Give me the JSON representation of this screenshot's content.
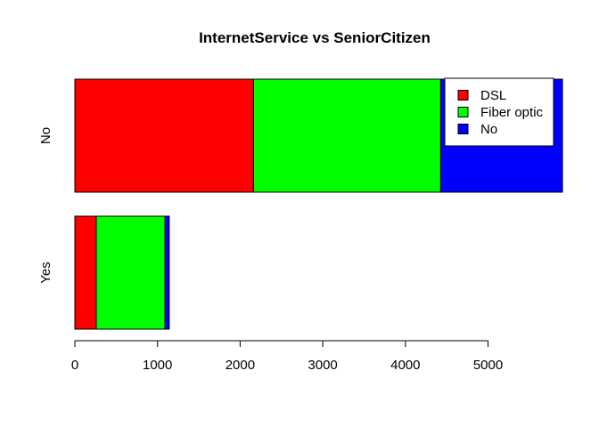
{
  "chart_data": {
    "type": "bar",
    "orientation": "horizontal",
    "stacked": true,
    "title": "InternetService vs SeniorCitizen",
    "xlabel": "",
    "ylabel": "",
    "categories": [
      "No",
      "Yes"
    ],
    "series": [
      {
        "name": "DSL",
        "color": "#FF0000",
        "values": [
          2162,
          259
        ]
      },
      {
        "name": "Fiber optic",
        "color": "#00FF00",
        "values": [
          2265,
          831
        ]
      },
      {
        "name": "No",
        "color": "#0000FF",
        "values": [
          1474,
          52
        ]
      }
    ],
    "xlim": [
      0,
      5901
    ],
    "xticks": [
      0,
      1000,
      2000,
      3000,
      4000,
      5000
    ],
    "xtick_labels": [
      "0",
      "1000",
      "2000",
      "3000",
      "4000",
      "5000"
    ],
    "legend": {
      "position": "top-right",
      "entries": [
        "DSL",
        "Fiber optic",
        "No"
      ]
    },
    "grid": false
  }
}
